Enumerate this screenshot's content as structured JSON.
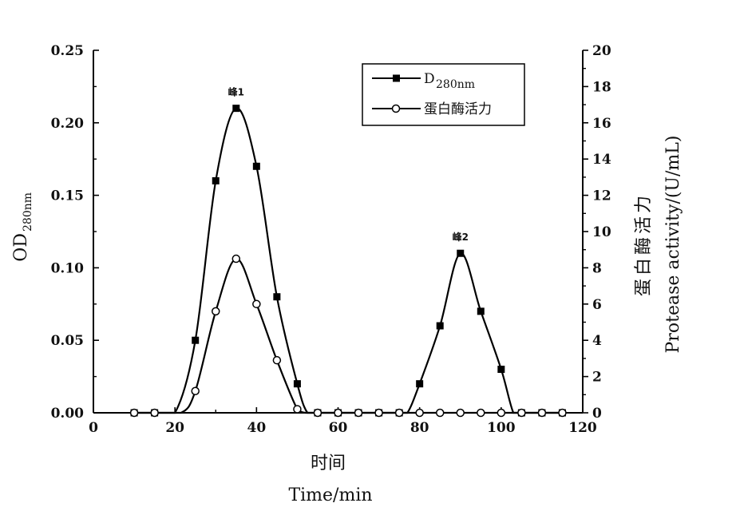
{
  "chart_data": {
    "type": "line",
    "x_axis": {
      "title_cn": "时间",
      "title_en": "Time/min",
      "range": [
        0,
        120
      ],
      "ticks": [
        0,
        20,
        40,
        60,
        80,
        100,
        120
      ],
      "tick_labels": [
        "0",
        "20",
        "40",
        "60",
        "80",
        "100",
        "120"
      ]
    },
    "y_left": {
      "title_main": "OD",
      "title_sub": "280nm",
      "range": [
        0,
        0.25
      ],
      "ticks": [
        0,
        0.05,
        0.1,
        0.15,
        0.2,
        0.25
      ],
      "tick_labels": [
        "0.00",
        "0.05",
        "0.10",
        "0.15",
        "0.20",
        "0.25"
      ]
    },
    "y_right": {
      "title_cn": "蛋白酶活力",
      "title_en": "Protease activity/(U/mL)",
      "range": [
        0,
        20
      ],
      "ticks": [
        0,
        2,
        4,
        6,
        8,
        10,
        12,
        14,
        16,
        18,
        20
      ],
      "tick_labels": [
        "0",
        "2",
        "4",
        "6",
        "8",
        "10",
        "12",
        "14",
        "16",
        "18",
        "20"
      ]
    },
    "series": [
      {
        "name_main": "D",
        "name_sub": "280nm",
        "marker": "filled-square",
        "axis": "left",
        "color": "#000000",
        "x": [
          10,
          15,
          25,
          30,
          35,
          40,
          45,
          50,
          55,
          60,
          65,
          70,
          75,
          80,
          85,
          90,
          95,
          100,
          105,
          110,
          115
        ],
        "y": [
          0,
          0,
          0.05,
          0.16,
          0.21,
          0.17,
          0.08,
          0.02,
          0,
          0,
          0,
          0,
          0,
          0.02,
          0.06,
          0.11,
          0.07,
          0.03,
          0,
          0,
          0
        ]
      },
      {
        "name": "蛋白酶活力",
        "marker": "open-circle",
        "axis": "right",
        "color": "#000000",
        "x": [
          10,
          15,
          25,
          30,
          35,
          40,
          45,
          50,
          55,
          60,
          65,
          70,
          75,
          80,
          85,
          90,
          95,
          100,
          105,
          110,
          115
        ],
        "y": [
          0,
          0,
          1.2,
          5.6,
          8.5,
          6.0,
          2.9,
          0.2,
          0,
          0,
          0,
          0,
          0,
          0,
          0,
          0,
          0,
          0,
          0,
          0,
          0
        ]
      }
    ],
    "annotations": [
      {
        "text": "峰1",
        "x": 35,
        "y": 0.21
      },
      {
        "text": "峰2",
        "x": 90,
        "y": 0.11
      }
    ],
    "legend_position": "top-right",
    "grid": false
  }
}
